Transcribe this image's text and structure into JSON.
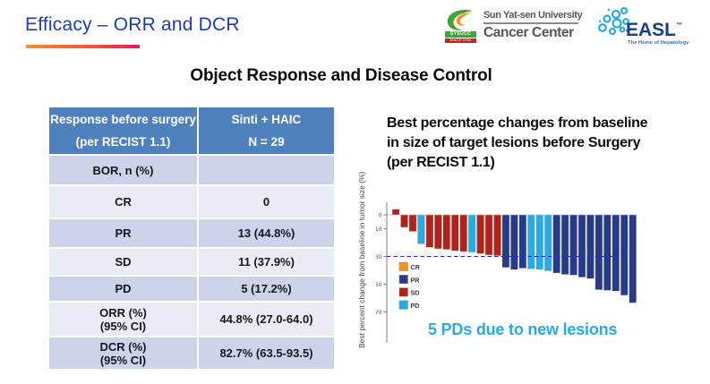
{
  "slide": {
    "title": "Efficacy – ORR and DCR",
    "subtitle": "Object Response and Disease Control"
  },
  "logos": {
    "sysucc": {
      "acronym": "SYSUCC",
      "since": "SINCE 1964",
      "line1": "Sun Yat-sen University",
      "line2": "Cancer Center"
    },
    "easl": {
      "name": "EASL",
      "tm": "™",
      "tagline": "The Home of Hepatology"
    }
  },
  "table": {
    "header": {
      "col1_line1": "Response before surgery",
      "col1_line2": "(per RECIST 1.1)",
      "col2_line1": "Sinti + HAIC",
      "col2_line2": "N = 29"
    },
    "rows": [
      {
        "label": "BOR, n (%)",
        "label2": "",
        "value": ""
      },
      {
        "label": "CR",
        "label2": "",
        "value": "0"
      },
      {
        "label": "PR",
        "label2": "",
        "value": "13 (44.8%)"
      },
      {
        "label": "SD",
        "label2": "",
        "value": "11 (37.9%)"
      },
      {
        "label": "PD",
        "label2": "",
        "value": "5 (17.2%)"
      },
      {
        "label": "ORR (%)",
        "label2": "(95% CI)",
        "value": "44.8% (27.0-64.0)"
      },
      {
        "label": "DCR (%)",
        "label2": "(95% CI)",
        "value": "82.7% (63.5-93.5)"
      }
    ]
  },
  "chart": {
    "title_line1": "Best percentage changes from baseline",
    "title_line2": "in size of target lesions before Surgery",
    "title_line3": "(per RECIST 1.1)",
    "annotation": "5 PDs due to new lesions"
  },
  "chart_data": {
    "type": "bar",
    "title": "Best percentage changes from baseline in size of target lesions before Surgery (per RECIST 1.1)",
    "xlabel": "",
    "ylabel": "Best percent change from baseline in tumor size (%)",
    "yticks": [
      0,
      -10,
      -30,
      -50,
      -70
    ],
    "ylim": [
      -75,
      8
    ],
    "reference_line": -30,
    "grid": false,
    "legend_position": "inside-left",
    "legend": [
      {
        "label": "CR",
        "color": "#F7941D"
      },
      {
        "label": "PR",
        "color": "#283C85"
      },
      {
        "label": "SD",
        "color": "#B0231A"
      },
      {
        "label": "PD",
        "color": "#29ABE2"
      }
    ],
    "n_patients": 29,
    "bars": [
      {
        "response": "SD",
        "value": 4
      },
      {
        "response": "SD",
        "value": -9
      },
      {
        "response": "SD",
        "value": -12
      },
      {
        "response": "PD",
        "value": -21
      },
      {
        "response": "SD",
        "value": -23.5
      },
      {
        "response": "SD",
        "value": -24.5
      },
      {
        "response": "SD",
        "value": -25
      },
      {
        "response": "SD",
        "value": -26
      },
      {
        "response": "SD",
        "value": -26.5
      },
      {
        "response": "PD",
        "value": -27
      },
      {
        "response": "SD",
        "value": -28
      },
      {
        "response": "SD",
        "value": -29
      },
      {
        "response": "SD",
        "value": -29.5
      },
      {
        "response": "PR",
        "value": -38
      },
      {
        "response": "PR",
        "value": -39.5
      },
      {
        "response": "PR",
        "value": -38.5
      },
      {
        "response": "PD",
        "value": -39
      },
      {
        "response": "PD",
        "value": -39.5
      },
      {
        "response": "PD",
        "value": -40.5
      },
      {
        "response": "PR",
        "value": -42
      },
      {
        "response": "PR",
        "value": -43
      },
      {
        "response": "PR",
        "value": -43.5
      },
      {
        "response": "PR",
        "value": -45
      },
      {
        "response": "PR",
        "value": -46
      },
      {
        "response": "PR",
        "value": -54
      },
      {
        "response": "PR",
        "value": -54.5
      },
      {
        "response": "PR",
        "value": -55
      },
      {
        "response": "PR",
        "value": -58
      },
      {
        "response": "PR",
        "value": -63.5
      }
    ]
  },
  "palette": {
    "title_blue": "#1E3EAE",
    "underline_start": "#F7941E",
    "underline_end": "#EC1C5C",
    "table_header_blue": "#4F81BD",
    "table_row_dark": "#CDD4E9",
    "table_row_light": "#EAECF5",
    "annotation_cyan": "#29ABE2",
    "reference_line_blue": "#2828D0"
  }
}
